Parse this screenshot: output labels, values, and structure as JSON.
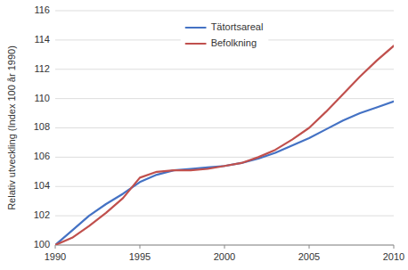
{
  "chart_data": {
    "type": "line",
    "ylabel": "Relativ utveckling (Index 100 år 1990)",
    "x": [
      1990,
      1991,
      1992,
      1993,
      1994,
      1995,
      1996,
      1997,
      1998,
      1999,
      2000,
      2001,
      2002,
      2003,
      2004,
      2005,
      2006,
      2007,
      2008,
      2009,
      2010
    ],
    "series": [
      {
        "name": "Tätortsareal",
        "color": "#4472c4",
        "values": [
          100.0,
          101.0,
          102.0,
          102.8,
          103.5,
          104.3,
          104.8,
          105.1,
          105.2,
          105.3,
          105.4,
          105.6,
          105.9,
          106.3,
          106.8,
          107.3,
          107.9,
          108.5,
          109.0,
          109.4,
          109.8
        ]
      },
      {
        "name": "Befolkning",
        "color": "#c0504d",
        "values": [
          100.0,
          100.5,
          101.3,
          102.2,
          103.2,
          104.6,
          105.0,
          105.1,
          105.1,
          105.2,
          105.4,
          105.6,
          106.0,
          106.5,
          107.2,
          108.0,
          109.1,
          110.3,
          111.5,
          112.6,
          113.6
        ]
      }
    ],
    "xlim": [
      1990,
      2010
    ],
    "ylim": [
      100,
      116
    ],
    "xticks": [
      1990,
      1995,
      2000,
      2005,
      2010
    ],
    "yticks": [
      100,
      102,
      104,
      106,
      108,
      110,
      112,
      114,
      116
    ],
    "grid": true,
    "legend": "upper center"
  }
}
